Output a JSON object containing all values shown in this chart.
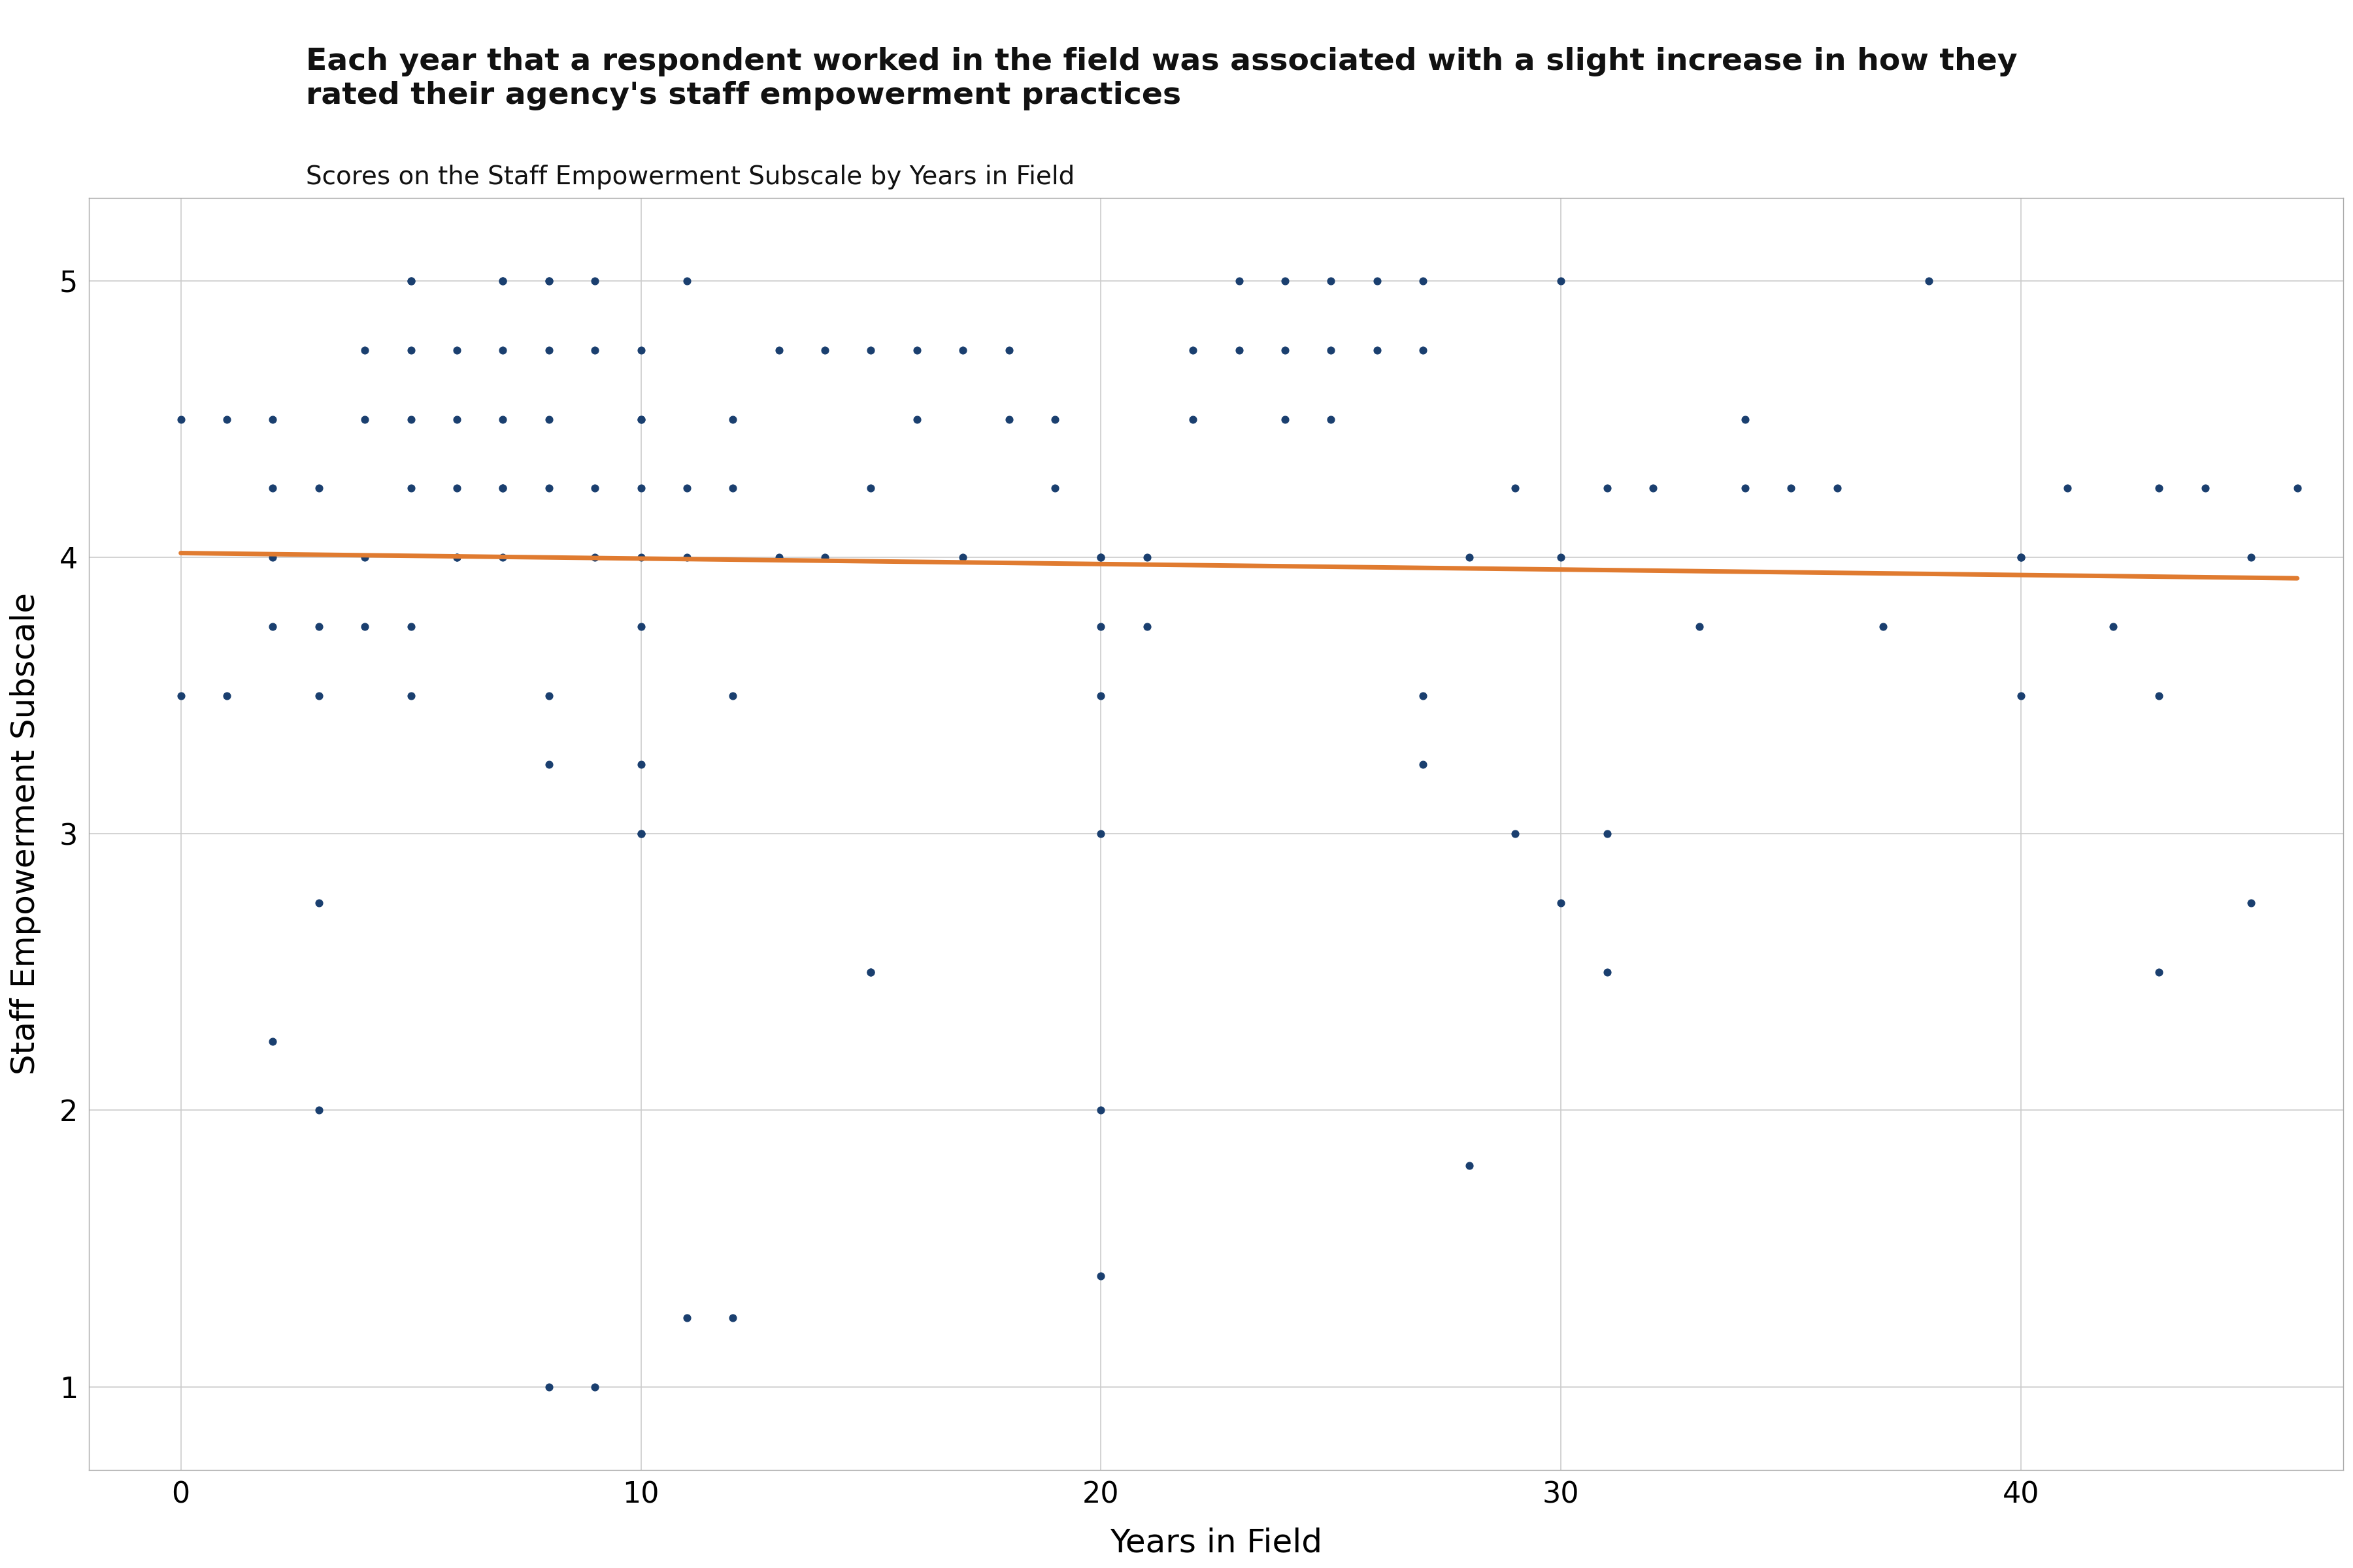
{
  "title_main": "Each year that a respondent worked in the field was associated with a slight increase in how they\nrated their agency's staff empowerment practices",
  "title_sub": "Scores on the Staff Empowerment Subscale by Years in Field",
  "xlabel": "Years in Field",
  "ylabel": "Staff Empowerment Subscale",
  "xlim": [
    -2,
    47
  ],
  "ylim": [
    0.7,
    5.3
  ],
  "xticks": [
    0,
    10,
    20,
    30,
    40
  ],
  "yticks": [
    1,
    2,
    3,
    4,
    5
  ],
  "background_color": "#ffffff",
  "grid_color": "#cccccc",
  "dot_color": "#1a3f6f",
  "line_color": "#e07b30",
  "dot_size": 60,
  "x": [
    0,
    0,
    1,
    1,
    2,
    2,
    2,
    2,
    2,
    3,
    3,
    3,
    3,
    3,
    4,
    4,
    4,
    4,
    5,
    5,
    5,
    5,
    5,
    5,
    5,
    6,
    6,
    6,
    6,
    6,
    7,
    7,
    7,
    7,
    7,
    7,
    7,
    8,
    8,
    8,
    8,
    8,
    8,
    8,
    8,
    9,
    9,
    9,
    9,
    9,
    10,
    10,
    10,
    10,
    10,
    10,
    10,
    10,
    10,
    11,
    11,
    11,
    11,
    12,
    12,
    12,
    12,
    13,
    13,
    14,
    14,
    15,
    15,
    15,
    15,
    16,
    16,
    17,
    17,
    18,
    18,
    19,
    19,
    20,
    20,
    20,
    20,
    20,
    20,
    20,
    21,
    21,
    22,
    22,
    23,
    23,
    24,
    24,
    24,
    25,
    25,
    25,
    26,
    26,
    27,
    27,
    27,
    27,
    28,
    28,
    29,
    29,
    30,
    30,
    30,
    31,
    31,
    31,
    32,
    33,
    34,
    34,
    35,
    36,
    37,
    38,
    40,
    40,
    40,
    41,
    42,
    43,
    43,
    43,
    44,
    45,
    45,
    46
  ],
  "y": [
    3.5,
    4.5,
    4.5,
    3.5,
    4.5,
    4.25,
    4.0,
    3.75,
    2.25,
    4.25,
    3.75,
    3.5,
    2.75,
    2.0,
    4.75,
    4.5,
    4.0,
    3.75,
    5.0,
    5.0,
    4.75,
    4.5,
    4.25,
    3.75,
    3.5,
    4.75,
    4.5,
    4.25,
    4.0,
    4.0,
    5.0,
    5.0,
    4.75,
    4.5,
    4.25,
    4.25,
    4.0,
    5.0,
    5.0,
    4.75,
    4.5,
    4.25,
    3.5,
    3.25,
    1.0,
    5.0,
    4.75,
    4.25,
    4.0,
    1.0,
    4.75,
    4.5,
    4.5,
    4.25,
    4.0,
    3.75,
    3.25,
    3.0,
    3.0,
    5.0,
    4.25,
    4.0,
    1.25,
    4.5,
    4.25,
    3.5,
    1.25,
    4.75,
    4.0,
    4.75,
    4.0,
    4.75,
    4.25,
    2.5,
    2.5,
    4.75,
    4.5,
    4.75,
    4.0,
    4.75,
    4.5,
    4.5,
    4.25,
    4.0,
    4.0,
    3.75,
    3.5,
    3.0,
    2.0,
    1.4,
    4.0,
    3.75,
    4.75,
    4.5,
    5.0,
    4.75,
    5.0,
    4.75,
    4.5,
    5.0,
    4.75,
    4.5,
    5.0,
    4.75,
    5.0,
    4.75,
    3.5,
    3.25,
    4.0,
    1.8,
    4.25,
    3.0,
    5.0,
    4.0,
    2.75,
    3.0,
    2.5,
    4.25,
    4.25,
    3.75,
    4.5,
    4.25,
    4.25,
    4.25,
    3.75,
    5.0,
    4.0,
    4.0,
    3.5,
    4.25,
    3.75,
    4.25,
    3.5,
    2.5,
    4.25,
    2.75,
    4.0,
    4.25
  ]
}
